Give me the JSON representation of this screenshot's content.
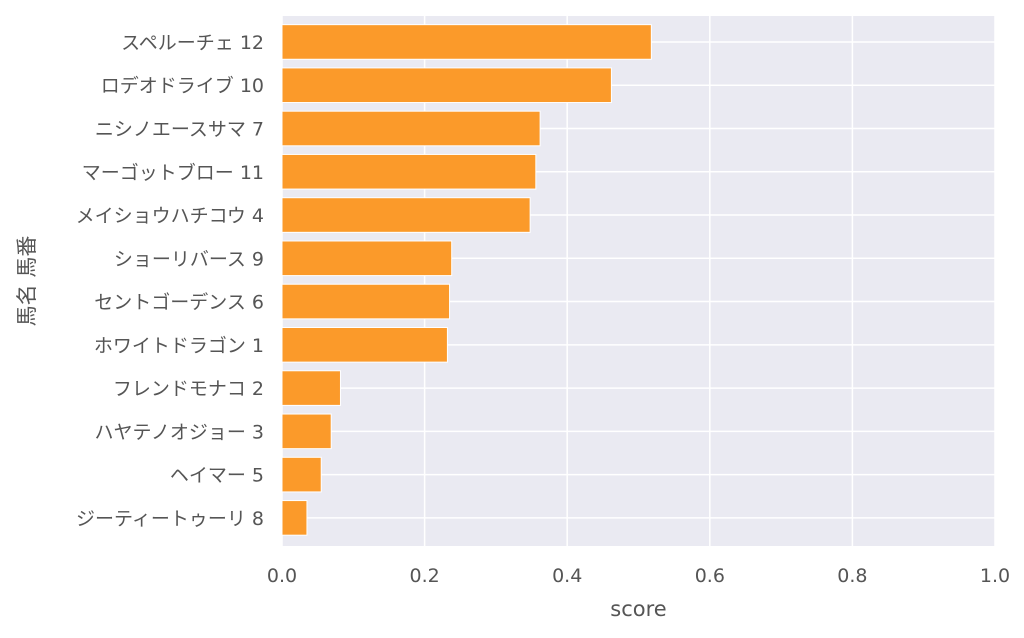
{
  "chart_data": {
    "type": "bar",
    "orientation": "horizontal",
    "xlabel": "score",
    "ylabel": "馬名 馬番",
    "xlim": [
      0,
      1.0
    ],
    "xticks": [
      "0.0",
      "0.2",
      "0.4",
      "0.6",
      "0.8",
      "1.0"
    ],
    "grid": true,
    "bar_color": "#fb9a2a",
    "background_color": "#eaeaf2",
    "categories": [
      "スペルーチェ 12",
      "ロデオドライブ 10",
      "ニシノエースサマ 7",
      "マーゴットブロー 11",
      "メイショウハチコウ 4",
      "ショーリバース 9",
      "セントゴーデンス 6",
      "ホワイトドラゴン 1",
      "フレンドモナコ 2",
      "ハヤテノオジョー 3",
      "ヘイマー 5",
      "ジーティートゥーリ 8"
    ],
    "values": [
      0.518,
      0.462,
      0.362,
      0.356,
      0.348,
      0.238,
      0.235,
      0.232,
      0.082,
      0.069,
      0.055,
      0.035
    ]
  }
}
